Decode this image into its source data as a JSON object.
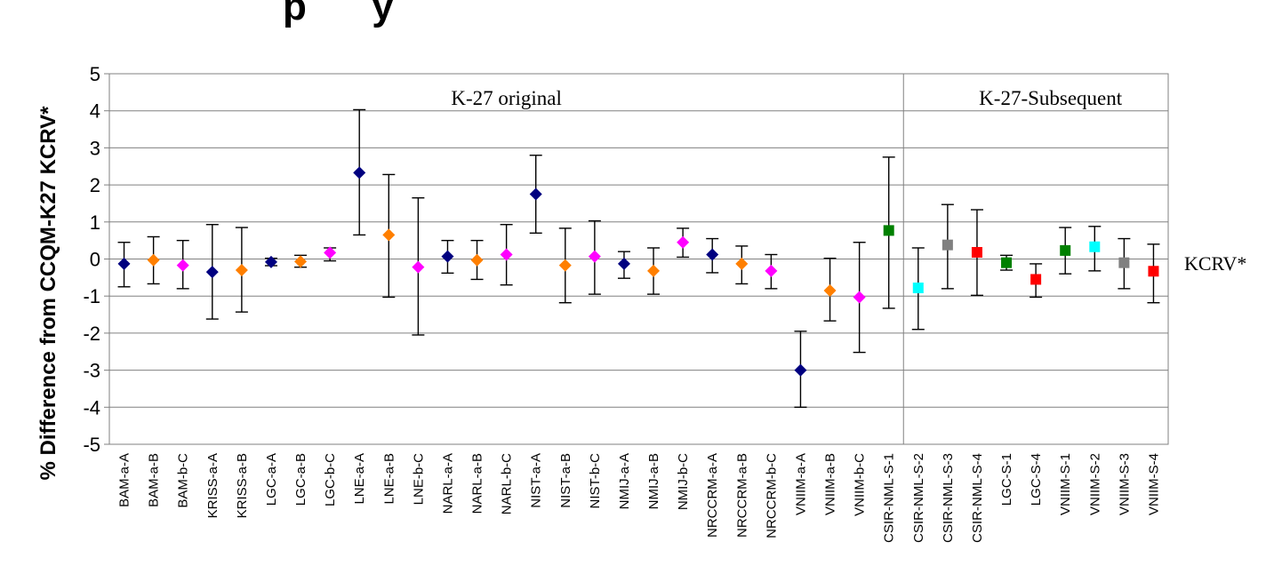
{
  "chart_data": {
    "type": "scatter",
    "title": "",
    "title_fragment": "p      y",
    "ylabel": "% Difference from CCQM-K27 KCRV*",
    "xlabel": "",
    "ylim": [
      -5,
      5
    ],
    "yticks": [
      "-5",
      "-4",
      "-3",
      "-2",
      "-1",
      "0",
      "1",
      "2",
      "3",
      "4",
      "5"
    ],
    "grid": true,
    "reference_line_label": "KCRV*",
    "sections": [
      {
        "label": "K-27 original",
        "start_index": 0,
        "end_index": 26
      },
      {
        "label": "K-27-Subsequent",
        "start_index": 27,
        "end_index": 36
      }
    ],
    "points": [
      {
        "label": "BAM-a-A",
        "value": -0.13,
        "low": -0.75,
        "high": 0.45,
        "marker": "diamond",
        "color": "#000080"
      },
      {
        "label": "BAM-a-B",
        "value": -0.03,
        "low": -0.67,
        "high": 0.6,
        "marker": "diamond",
        "color": "#ff7f00"
      },
      {
        "label": "BAM-b-C",
        "value": -0.17,
        "low": -0.8,
        "high": 0.5,
        "marker": "diamond",
        "color": "#ff00ff"
      },
      {
        "label": "KRISS-a-A",
        "value": -0.35,
        "low": -1.62,
        "high": 0.93,
        "marker": "diamond",
        "color": "#000080"
      },
      {
        "label": "KRISS-a-B",
        "value": -0.3,
        "low": -1.43,
        "high": 0.85,
        "marker": "diamond",
        "color": "#ff7f00"
      },
      {
        "label": "LGC-a-A",
        "value": -0.08,
        "low": -0.18,
        "high": 0.02,
        "marker": "diamond",
        "color": "#000080"
      },
      {
        "label": "LGC-a-B",
        "value": -0.07,
        "low": -0.22,
        "high": 0.1,
        "marker": "diamond",
        "color": "#ff7f00"
      },
      {
        "label": "LGC-b-C",
        "value": 0.17,
        "low": -0.05,
        "high": 0.3,
        "marker": "diamond",
        "color": "#ff00ff"
      },
      {
        "label": "LNE-a-A",
        "value": 2.33,
        "low": 0.65,
        "high": 4.03,
        "marker": "diamond",
        "color": "#000080"
      },
      {
        "label": "LNE-a-B",
        "value": 0.65,
        "low": -1.03,
        "high": 2.28,
        "marker": "diamond",
        "color": "#ff7f00"
      },
      {
        "label": "LNE-b-C",
        "value": -0.22,
        "low": -2.05,
        "high": 1.65,
        "marker": "diamond",
        "color": "#ff00ff"
      },
      {
        "label": "NARL-a-A",
        "value": 0.07,
        "low": -0.38,
        "high": 0.5,
        "marker": "diamond",
        "color": "#000080"
      },
      {
        "label": "NARL-a-B",
        "value": -0.03,
        "low": -0.55,
        "high": 0.5,
        "marker": "diamond",
        "color": "#ff7f00"
      },
      {
        "label": "NARL-b-C",
        "value": 0.12,
        "low": -0.7,
        "high": 0.93,
        "marker": "diamond",
        "color": "#ff00ff"
      },
      {
        "label": "NIST-a-A",
        "value": 1.75,
        "low": 0.7,
        "high": 2.8,
        "marker": "diamond",
        "color": "#000080"
      },
      {
        "label": "NIST-a-B",
        "value": -0.17,
        "low": -1.18,
        "high": 0.83,
        "marker": "diamond",
        "color": "#ff7f00"
      },
      {
        "label": "NIST-b-C",
        "value": 0.07,
        "low": -0.95,
        "high": 1.03,
        "marker": "diamond",
        "color": "#ff00ff"
      },
      {
        "label": "NMIJ-a-A",
        "value": -0.13,
        "low": -0.52,
        "high": 0.2,
        "marker": "diamond",
        "color": "#000080"
      },
      {
        "label": "NMIJ-a-B",
        "value": -0.32,
        "low": -0.95,
        "high": 0.3,
        "marker": "diamond",
        "color": "#ff7f00"
      },
      {
        "label": "NMIJ-b-C",
        "value": 0.45,
        "low": 0.05,
        "high": 0.83,
        "marker": "diamond",
        "color": "#ff00ff"
      },
      {
        "label": "NRCCRM-a-A",
        "value": 0.12,
        "low": -0.37,
        "high": 0.55,
        "marker": "diamond",
        "color": "#000080"
      },
      {
        "label": "NRCCRM-a-B",
        "value": -0.13,
        "low": -0.67,
        "high": 0.35,
        "marker": "diamond",
        "color": "#ff7f00"
      },
      {
        "label": "NRCCRM-b-C",
        "value": -0.32,
        "low": -0.8,
        "high": 0.12,
        "marker": "diamond",
        "color": "#ff00ff"
      },
      {
        "label": "VNIIM-a-A",
        "value": -3.0,
        "low": -4.0,
        "high": -1.95,
        "marker": "diamond",
        "color": "#000080"
      },
      {
        "label": "VNIIM-a-B",
        "value": -0.85,
        "low": -1.67,
        "high": 0.02,
        "marker": "diamond",
        "color": "#ff7f00"
      },
      {
        "label": "VNIIM-b-C",
        "value": -1.03,
        "low": -2.52,
        "high": 0.45,
        "marker": "diamond",
        "color": "#ff00ff"
      },
      {
        "label": "CSIR-NML-S-1",
        "value": 0.77,
        "low": -1.33,
        "high": 2.75,
        "marker": "square",
        "color": "#008000"
      },
      {
        "label": "CSIR-NML-S-2",
        "value": -0.78,
        "low": -1.9,
        "high": 0.3,
        "marker": "square",
        "color": "#00ffff"
      },
      {
        "label": "CSIR-NML-S-3",
        "value": 0.38,
        "low": -0.8,
        "high": 1.47,
        "marker": "square",
        "color": "#808080"
      },
      {
        "label": "CSIR-NML-S-4",
        "value": 0.18,
        "low": -0.98,
        "high": 1.33,
        "marker": "square",
        "color": "#ff0000"
      },
      {
        "label": "LGC-S-1",
        "value": -0.1,
        "low": -0.3,
        "high": 0.1,
        "marker": "square",
        "color": "#008000"
      },
      {
        "label": "LGC-S-4",
        "value": -0.55,
        "low": -1.03,
        "high": -0.13,
        "marker": "square",
        "color": "#ff0000"
      },
      {
        "label": "VNIIM-S-1",
        "value": 0.23,
        "low": -0.4,
        "high": 0.85,
        "marker": "square",
        "color": "#008000"
      },
      {
        "label": "VNIIM-S-2",
        "value": 0.33,
        "low": -0.32,
        "high": 0.88,
        "marker": "square",
        "color": "#00ffff"
      },
      {
        "label": "VNIIM-S-3",
        "value": -0.1,
        "low": -0.8,
        "high": 0.55,
        "marker": "square",
        "color": "#808080"
      },
      {
        "label": "VNIIM-S-4",
        "value": -0.33,
        "low": -1.18,
        "high": 0.4,
        "marker": "square",
        "color": "#ff0000"
      }
    ]
  }
}
